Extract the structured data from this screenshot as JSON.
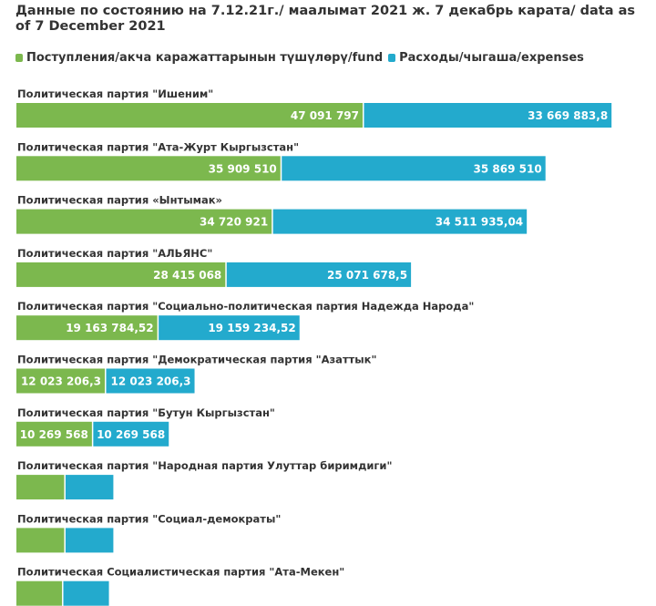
{
  "title": "Данные по состоянию на 7.12.21г./ маалымат 2021 ж. 7 декабрь карата/ data as of 7 December 2021",
  "colors": {
    "fund": "#7cb84e",
    "expenses": "#23aacd",
    "text": "#333333",
    "value_label": "#ffffff"
  },
  "chart_data": {
    "type": "bar",
    "orientation": "horizontal",
    "stacked": true,
    "legend_position": "top-left",
    "grid": false,
    "categories": [
      "Политическая партия \"Ишеним\"",
      "Политическая партия \"Ата-Журт Кыргызстан\"",
      "Политическая партия «Ынтымак»",
      "Политическая партия \"АЛЬЯНС\"",
      "Политическая партия \"Социально-политическая партия Надежда Народа\"",
      "Политическая партия \"Демократическая партия \"Азаттык\"",
      "Политическая партия \"Бутун Кыргызстан\"",
      "Политическая партия \"Народная партия Улуттар биримдиги\"",
      "Политическая партия \"Социал-демократы\"",
      "Политическая Социалистическая партия \"Ата-Мекен\""
    ],
    "series": [
      {
        "name": "Поступления/акча каражаттарынын түшүлөрү/fund",
        "color": "#7cb84e",
        "values": [
          47091797,
          35909510,
          34720921,
          28415068,
          19163784.52,
          12023206.3,
          10269568,
          6500000,
          6500000,
          6200000
        ],
        "labels": [
          "47 091 797",
          "35 909 510",
          "34 720 921",
          "28 415 068",
          "19 163 784,52",
          "12 023 206,3",
          "10 269 568",
          "",
          "",
          ""
        ]
      },
      {
        "name": "Расходы/чыгаша/expenses",
        "color": "#23aacd",
        "values": [
          33669883.8,
          35869510,
          34511935.04,
          25071678.5,
          19159234.52,
          12023206.3,
          10269568,
          6500000,
          6500000,
          6200000
        ],
        "labels": [
          "33 669 883,8",
          "35 869 510",
          "34 511 935,04",
          "25 071 678,5",
          "19 159 234,52",
          "12 023 206,3",
          "10 269 568",
          "",
          "",
          ""
        ]
      }
    ]
  }
}
